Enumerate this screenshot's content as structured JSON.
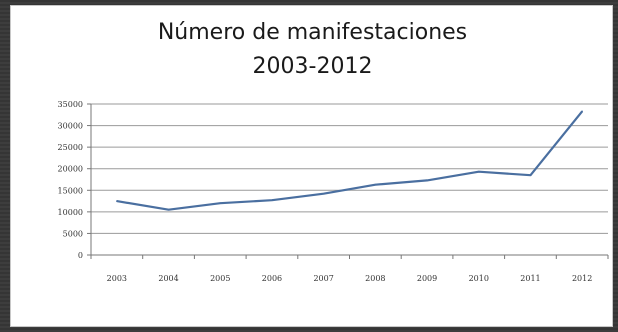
{
  "chart_data": {
    "type": "line",
    "title": "Número de manifestaciones",
    "subtitle": "2003-2012",
    "xlabel": "",
    "ylabel": "",
    "categories": [
      "2003",
      "2004",
      "2005",
      "2006",
      "2007",
      "2008",
      "2009",
      "2010",
      "2011",
      "2012"
    ],
    "series": [
      {
        "values": [
          12500,
          10500,
          12000,
          12700,
          14200,
          16300,
          17300,
          19300,
          18500,
          33300
        ]
      }
    ],
    "ylim": [
      0,
      35000
    ],
    "yticks": [
      0,
      5000,
      10000,
      15000,
      20000,
      25000,
      30000,
      35000
    ],
    "ytick_labels": [
      "0",
      "5000",
      "10000",
      "15000",
      "20000",
      "25000",
      "30000",
      "35000"
    ],
    "grid": true,
    "legend": "none",
    "line_color": "#4a6fa0",
    "grid_color": "#9a9a9a"
  }
}
